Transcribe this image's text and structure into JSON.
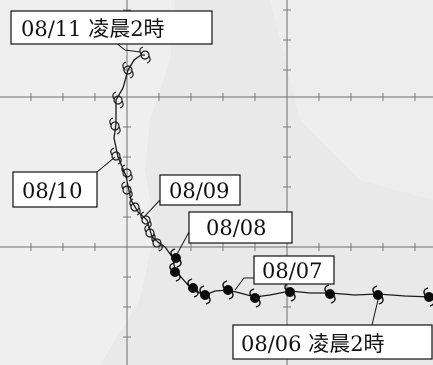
{
  "map": {
    "colors": {
      "background": "#e9e9e9",
      "land": "#f2f2f2",
      "grid": "#7a7a7a",
      "track": "#1a1a1a",
      "label_border": "#111111"
    },
    "labels": {
      "start": "08/06 凌晨2時",
      "d0807": "08/07",
      "d0808": "08/08",
      "d0809": "08/09",
      "d0810": "08/10",
      "end": "08/11 凌晨2時"
    },
    "legend_symbols": {
      "solid_marker": "typhoon-symbol-filled",
      "open_marker": "tropical-storm-symbol-open"
    }
  }
}
